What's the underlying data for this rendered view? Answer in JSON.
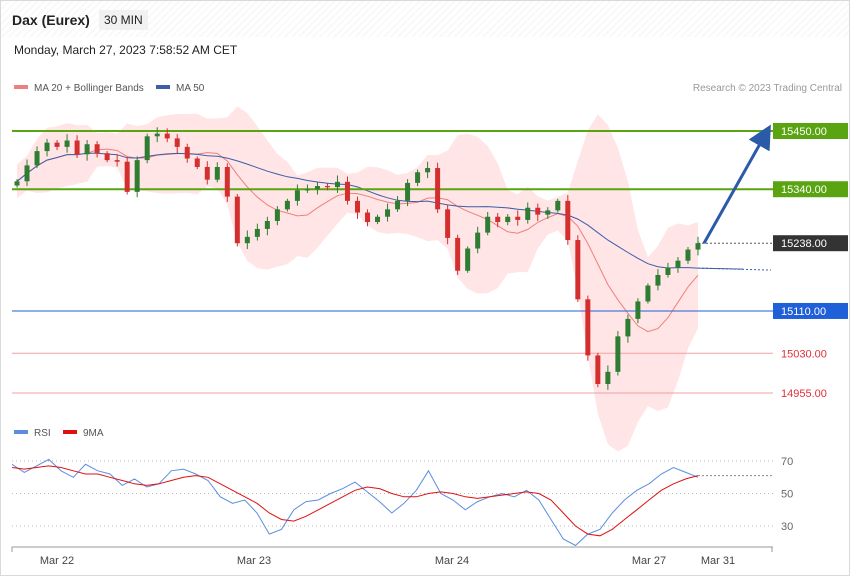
{
  "header": {
    "instrument": "Dax (Eurex)",
    "interval": "30 MIN",
    "timestamp": "Monday, March 27, 2023 7:58:52 AM CET"
  },
  "legend": {
    "ma20_label": "MA 20 + Bollinger Bands",
    "ma50_label": "MA 50",
    "copyright": "Research © 2023 Trading Central",
    "rsi_label": "RSI",
    "rsi_ma_label": "9MA"
  },
  "colors": {
    "candle_up": "#2e7d32",
    "candle_down": "#d32f2f",
    "bollinger_fill": "#ffe5e5",
    "ma20": "#ef7f7f",
    "ma50": "#3b5fa8",
    "resistance": "#5aa411",
    "pivot": "#1f5fd8",
    "support": "#e0303a",
    "last_price": "#333333",
    "arrow": "#2a5aa8",
    "rsi": "#5b8ee0",
    "rsi_ma": "#e01010"
  },
  "chart_data": [
    {
      "type": "candlestick",
      "title": "Dax (Eurex) 30 MIN",
      "x_ticks": [
        "Mar 22",
        "Mar 23",
        "Mar 24",
        "Mar 27",
        "Mar 31"
      ],
      "ylim": [
        14925,
        15545
      ],
      "levels": [
        {
          "value": 15450.0,
          "label": "15450.00",
          "kind": "resistance"
        },
        {
          "value": 15340.0,
          "label": "15340.00",
          "kind": "resistance"
        },
        {
          "value": 15238.0,
          "label": "15238.00",
          "kind": "last"
        },
        {
          "value": 15110.0,
          "label": "15110.00",
          "kind": "pivot"
        },
        {
          "value": 15030.0,
          "label": "15030.00",
          "kind": "support"
        },
        {
          "value": 14955.0,
          "label": "14955.00",
          "kind": "support"
        }
      ],
      "price_path": [
        15355,
        15385,
        15412,
        15428,
        15420,
        15432,
        15406,
        15425,
        15408,
        15395,
        15392,
        15335,
        15395,
        15440,
        15445,
        15436,
        15420,
        15398,
        15382,
        15358,
        15382,
        15326,
        15238,
        15250,
        15265,
        15280,
        15302,
        15318,
        15338,
        15340,
        15346,
        15344,
        15354,
        15318,
        15296,
        15278,
        15288,
        15302,
        15318,
        15352,
        15372,
        15380,
        15302,
        15248,
        15186,
        15228,
        15258,
        15288,
        15278,
        15288,
        15282,
        15305,
        15292,
        15300,
        15318,
        15244,
        15132,
        15026,
        14972,
        14995,
        15062,
        15095,
        15128,
        15158,
        15178,
        15192,
        15205,
        15226,
        15238
      ]
    },
    {
      "type": "line",
      "title": "RSI",
      "series": [
        {
          "name": "RSI",
          "values": [
            68,
            63,
            67,
            71,
            64,
            60,
            68,
            64,
            62,
            55,
            59,
            54,
            56,
            64,
            65,
            62,
            58,
            48,
            44,
            46,
            38,
            25,
            28,
            40,
            45,
            46,
            50,
            53,
            57,
            51,
            45,
            38,
            44,
            52,
            64,
            50,
            46,
            40,
            45,
            48,
            50,
            48,
            52,
            46,
            34,
            22,
            18,
            25,
            28,
            38,
            46,
            52,
            56,
            62,
            66,
            63,
            60
          ]
        },
        {
          "name": "9MA",
          "values": [
            66,
            65,
            66,
            67,
            66,
            64,
            62,
            62,
            60,
            58,
            56,
            55,
            56,
            58,
            60,
            61,
            60,
            56,
            52,
            48,
            44,
            38,
            34,
            33,
            36,
            40,
            44,
            48,
            52,
            54,
            53,
            50,
            48,
            48,
            50,
            51,
            50,
            48,
            47,
            48,
            49,
            50,
            51,
            50,
            46,
            38,
            30,
            25,
            24,
            28,
            34,
            40,
            46,
            52,
            56,
            59,
            61
          ]
        }
      ],
      "y_ticks": [
        30,
        50,
        70
      ],
      "ylim": [
        10,
        85
      ]
    }
  ]
}
